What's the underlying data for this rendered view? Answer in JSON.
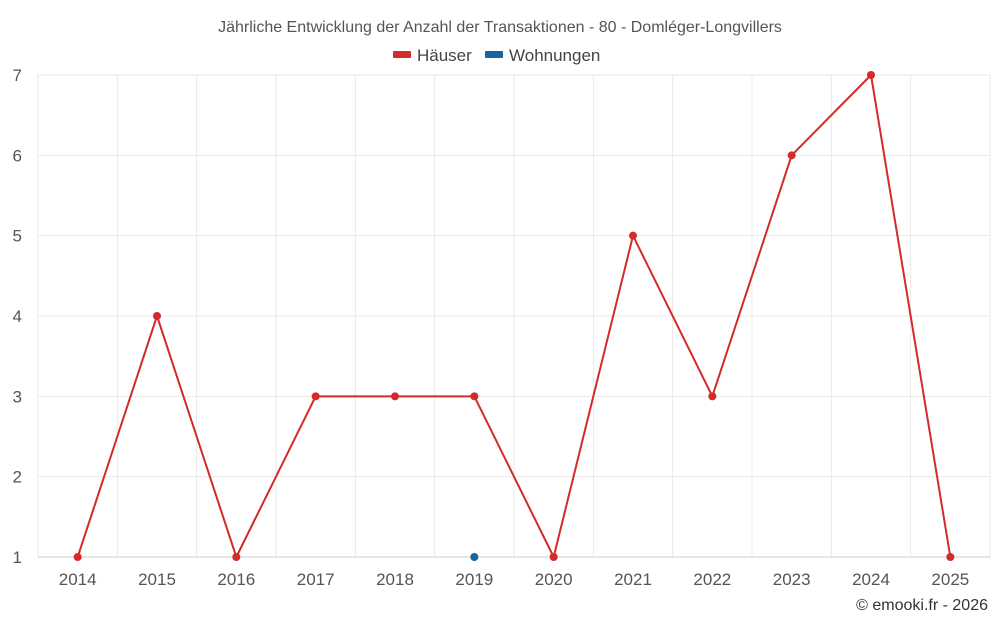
{
  "chart_data": {
    "type": "line",
    "title": "Jährliche Entwicklung der Anzahl der Transaktionen - 80 - Domléger-Longvillers",
    "categories": [
      "2014",
      "2015",
      "2016",
      "2017",
      "2018",
      "2019",
      "2020",
      "2021",
      "2022",
      "2023",
      "2024",
      "2025"
    ],
    "series": [
      {
        "name": "Häuser",
        "color": "#d32a2a",
        "values": [
          1,
          4,
          1,
          3,
          3,
          3,
          1,
          5,
          3,
          6,
          7,
          1
        ]
      },
      {
        "name": "Wohnungen",
        "color": "#1565a0",
        "values": [
          null,
          null,
          null,
          null,
          null,
          1,
          null,
          null,
          null,
          null,
          null,
          null
        ]
      }
    ],
    "yticks": [
      "1",
      "2",
      "3",
      "4",
      "5",
      "6",
      "7"
    ],
    "ylim": [
      1,
      7
    ],
    "grid": true,
    "legend_position": "top-center",
    "xlabel": "",
    "ylabel": ""
  },
  "credit": "© emooki.fr - 2026"
}
